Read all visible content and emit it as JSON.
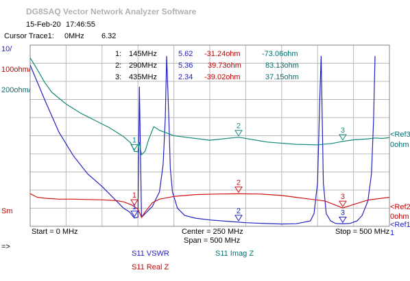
{
  "app_title": "DG8SAQ Vector Network Analyzer Software",
  "header": {
    "date": "15-Feb-20",
    "time": "17:46:55"
  },
  "cursor": {
    "label": "Cursor Trace1:",
    "freq": "0MHz",
    "value": "6.32"
  },
  "scales": {
    "vswr": "10/",
    "real": "100ohm/",
    "imag": "200ohm/",
    "smith": "Sm"
  },
  "refs": {
    "ref3": {
      "label": "<Ref3",
      "value": "0ohm"
    },
    "ref2": {
      "label": "<Ref2",
      "value": "0ohm"
    },
    "ref1": {
      "label": "<Ref1",
      "value": "1"
    }
  },
  "axis": {
    "start": "Start = 0 MHz",
    "center": "Center = 250 MHz",
    "span": "Span = 500 MHz",
    "stop": "Stop = 500 MHz"
  },
  "markers": [
    {
      "num": "1:",
      "freq": "145MHz",
      "vswr": "5.62",
      "real": "-31.24ohm",
      "imag": "-73.06ohm"
    },
    {
      "num": "2:",
      "freq": "290MHz",
      "vswr": "5.36",
      "real": "39.73ohm",
      "imag": "83.13ohm"
    },
    {
      "num": "3:",
      "freq": "435MHz",
      "vswr": "2.34",
      "real": "-39.02ohm",
      "imag": "37.15ohm"
    }
  ],
  "legend": {
    "vswr": "S11  VSWR",
    "imag": "S11  Imag Z",
    "real": "S11  Real Z"
  },
  "footer_arrow": "=>",
  "colors": {
    "vswr": "#2020c0",
    "real": "#d01010",
    "imag": "#108878",
    "grid": "#b8b8b8"
  },
  "chart_data": {
    "type": "line",
    "x_unit": "MHz",
    "xlim": [
      0,
      500
    ],
    "series": [
      {
        "name": "S11 VSWR",
        "x": [
          0,
          20,
          40,
          60,
          80,
          100,
          115,
          125,
          130,
          138,
          145,
          150,
          152,
          155,
          160,
          170,
          180,
          185,
          188,
          190,
          193,
          195,
          198,
          205,
          215,
          230,
          250,
          280,
          300,
          330,
          350,
          370,
          390,
          395,
          400,
          403,
          405,
          408,
          412,
          418,
          425,
          435,
          445,
          455,
          462,
          470,
          475,
          478,
          480
        ],
        "y": [
          90,
          71,
          53,
          40,
          30,
          23,
          17,
          13,
          11,
          9,
          5.62,
          6,
          78,
          6,
          8,
          12,
          20,
          35,
          60,
          95,
          60,
          33,
          20,
          11,
          7,
          5.5,
          4.5,
          3.6,
          3,
          2.5,
          2.3,
          2.4,
          4,
          8,
          25,
          70,
          95,
          25,
          8,
          4,
          2.6,
          2.34,
          2.6,
          4,
          7,
          15,
          30,
          60,
          95
        ]
      },
      {
        "name": "S11 Imag Z",
        "x": [
          0,
          10,
          20,
          30,
          50,
          70,
          90,
          110,
          130,
          140,
          145,
          150,
          152,
          155,
          160,
          165,
          172,
          180,
          200,
          250,
          290,
          330,
          370,
          400,
          420,
          435,
          450,
          470,
          480,
          490,
          500
        ],
        "y": [
          960,
          830,
          690,
          580,
          450,
          350,
          270,
          190,
          90,
          20,
          -73.06,
          -75,
          30,
          -110,
          -70,
          60,
          200,
          160,
          100,
          50,
          83.13,
          30,
          5,
          0,
          15,
          37.15,
          55,
          65,
          75,
          70,
          80
        ]
      },
      {
        "name": "S11 Real Z",
        "x": [
          0,
          10,
          20,
          40,
          60,
          80,
          100,
          120,
          130,
          140,
          145,
          150,
          155,
          160,
          170,
          180,
          200,
          230,
          260,
          290,
          320,
          350,
          370,
          390,
          410,
          420,
          435,
          450,
          470,
          490,
          500
        ],
        "y": [
          40,
          20,
          15,
          10,
          10,
          8,
          6,
          2,
          -5,
          -20,
          -31.24,
          -45,
          -90,
          -60,
          -10,
          10,
          25,
          35,
          38,
          39.73,
          38,
          30,
          20,
          10,
          0,
          -15,
          -39.02,
          -20,
          5,
          15,
          20
        ]
      }
    ],
    "markers": [
      {
        "id": "1",
        "x": 145
      },
      {
        "id": "2",
        "x": 290
      },
      {
        "id": "3",
        "x": 435
      }
    ]
  }
}
